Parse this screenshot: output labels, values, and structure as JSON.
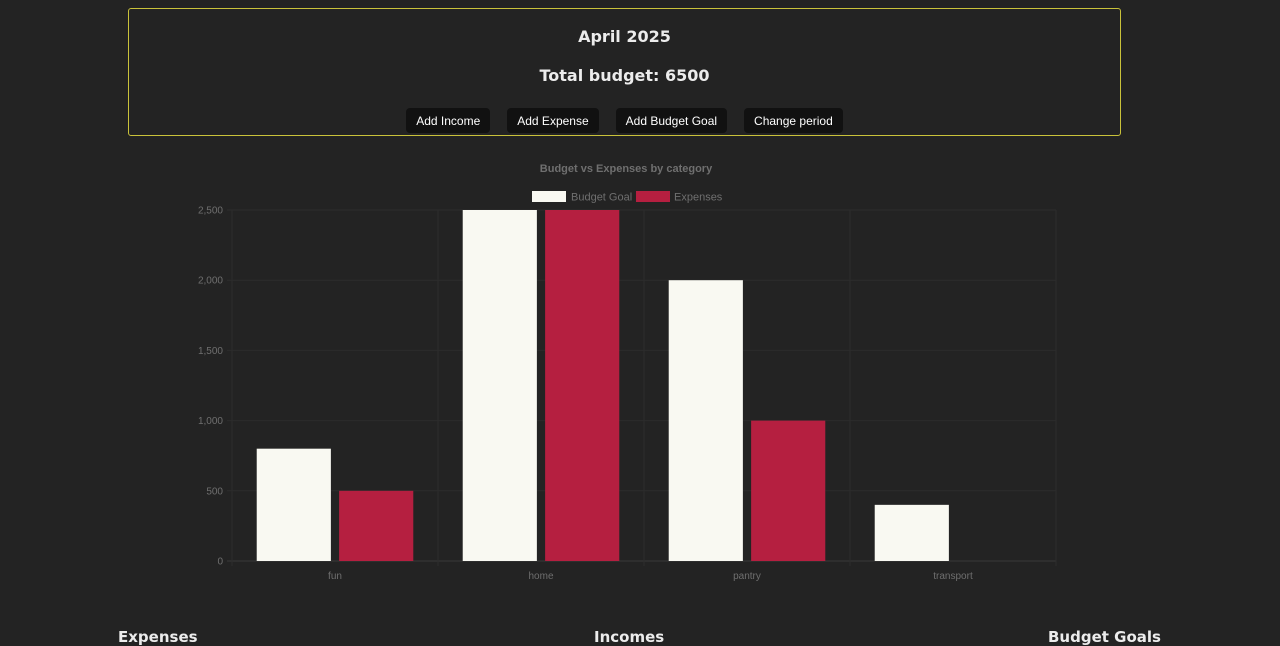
{
  "summary": {
    "period": "April 2025",
    "total_budget": "Total budget: 6500",
    "buttons": {
      "add_income": "Add Income",
      "add_expense": "Add Expense",
      "add_budget_goal": "Add Budget Goal",
      "change_period": "Change period"
    }
  },
  "chart_data": {
    "type": "bar",
    "title": "Budget vs Expenses by category",
    "categories": [
      "fun",
      "home",
      "pantry",
      "transport"
    ],
    "series": [
      {
        "name": "Budget Goal",
        "values": [
          800,
          2500,
          2000,
          400
        ],
        "color": "#f9f9f2"
      },
      {
        "name": "Expenses",
        "values": [
          500,
          2500,
          1000,
          0
        ],
        "color": "#b51f40"
      }
    ],
    "ylim": [
      0,
      2500
    ],
    "yticks": [
      "0",
      "500",
      "1,000",
      "1,500",
      "2,000",
      "2,500"
    ],
    "ytick_values": [
      0,
      500,
      1000,
      1500,
      2000,
      2500
    ],
    "legend_position": "top",
    "grid": true
  },
  "sections": {
    "expenses": "Expenses",
    "incomes": "Incomes",
    "budget_goals": "Budget Goals"
  }
}
